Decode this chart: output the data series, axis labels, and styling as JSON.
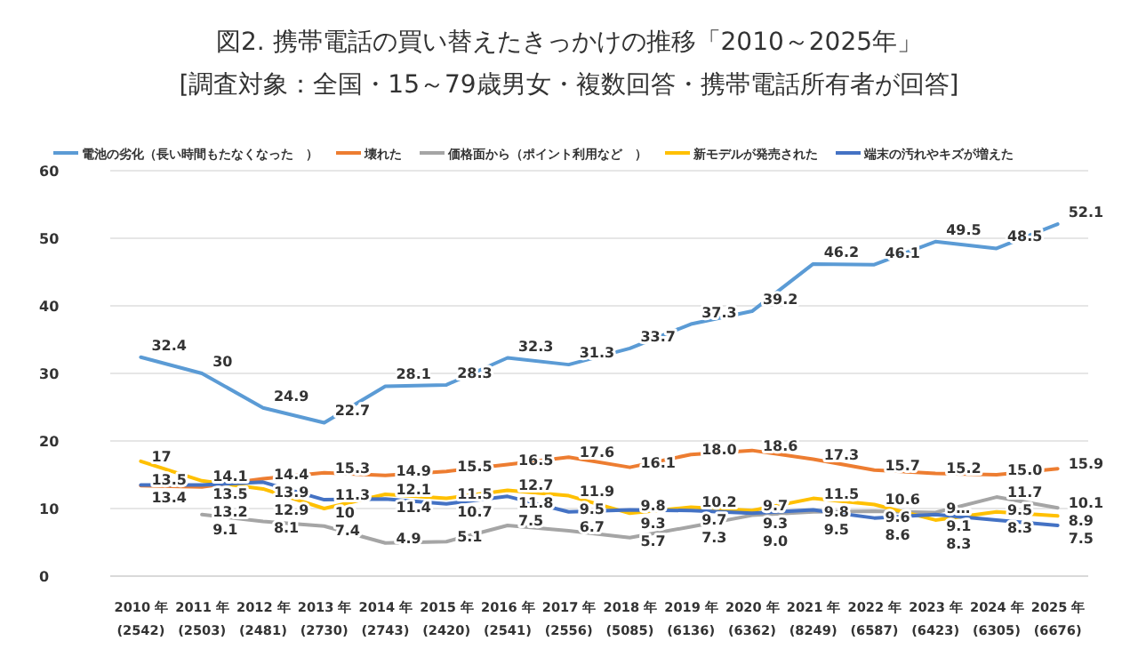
{
  "chart_data": {
    "type": "line",
    "title": "図2. 携帯電話の買い替えたきっかけの推移「2010～2025年」",
    "subtitle": "[調査対象：全国・15～79歳男女・複数回答・携帯電話所有者が回答]",
    "categories": [
      "2010 年\n(2542)",
      "2011 年\n(2503)",
      "2012 年\n(2481)",
      "2013 年\n(2730)",
      "2014 年\n(2743)",
      "2015 年\n(2420)",
      "2016 年\n(2541)",
      "2017 年\n(2556)",
      "2018 年\n(5085)",
      "2019 年\n(6136)",
      "2020 年\n(6362)",
      "2021 年\n(8249)",
      "2022 年\n(6587)",
      "2023 年\n(6423)",
      "2024 年\n(6305)",
      "2025 年\n(6676)"
    ],
    "series": [
      {
        "name": "電池の劣化（長い時間もたなくなった　）",
        "color": "#5b9bd5",
        "values": [
          32.4,
          30,
          24.9,
          22.7,
          28.1,
          28.3,
          32.3,
          31.3,
          33.7,
          37.3,
          39.2,
          46.2,
          46.1,
          49.5,
          48.5,
          52.1
        ],
        "value_labels": [
          "32.4",
          "30",
          "24.9",
          "22.7",
          "28.1",
          "28.3",
          "32.3",
          "31.3",
          "33.7",
          "37.3",
          "39.2",
          "46.2",
          "46.1",
          "49.5",
          "48.5",
          "52.1"
        ]
      },
      {
        "name": "壊れた",
        "color": "#ed7d31",
        "values": [
          13.4,
          13.2,
          14.4,
          15.3,
          14.9,
          15.5,
          16.5,
          17.6,
          16.1,
          18.0,
          18.6,
          17.3,
          15.7,
          15.2,
          15.0,
          15.9
        ],
        "value_labels": [
          "13.4",
          "13.2",
          "14.4",
          "15.3",
          "14.9",
          "15.5",
          "16.5",
          "17.6",
          "16.1",
          "18.0",
          "18.6",
          "17.3",
          "15.7",
          "15.2",
          "15.0",
          "15.9"
        ]
      },
      {
        "name": "価格面から（ポイント利用など　）",
        "color": "#a5a5a5",
        "values": [
          null,
          9.1,
          8.1,
          7.4,
          4.9,
          5.1,
          7.5,
          6.7,
          5.7,
          7.3,
          9.0,
          9.5,
          9.6,
          9.4,
          11.7,
          10.1
        ],
        "value_labels": [
          null,
          "9.1",
          "8.1",
          "7.4",
          "4.9",
          "5.1",
          "7.5",
          "6.7",
          "5.7",
          "7.3",
          "9.0",
          "9.5",
          "9.6",
          "9…",
          "11.7",
          "10.1"
        ]
      },
      {
        "name": "新モデルが発売された",
        "color": "#ffc000",
        "values": [
          17,
          14.1,
          12.9,
          10,
          12.1,
          11.5,
          12.7,
          11.9,
          9.3,
          10.2,
          9.7,
          11.5,
          10.6,
          8.3,
          9.5,
          8.9
        ],
        "value_labels": [
          "17",
          "14.1",
          "12.9",
          "10",
          "12.1",
          "11.5",
          "12.7",
          "11.9",
          "9.3",
          "10.2",
          "9.7",
          "11.5",
          "10.6",
          "8.3",
          "9.5",
          "8.9"
        ]
      },
      {
        "name": "端末の汚れやキズが増えた",
        "color": "#4472c4",
        "values": [
          13.5,
          13.5,
          13.9,
          11.3,
          11.4,
          10.7,
          11.8,
          9.5,
          9.8,
          9.7,
          9.3,
          9.8,
          8.6,
          9.1,
          8.3,
          7.5
        ],
        "value_labels": [
          "13.5",
          "13.5",
          "13.9",
          "11.3",
          "11.4",
          "10.7",
          "11.8",
          "9.5",
          "9.8",
          "9.7",
          "9.3",
          "9.8",
          "8.6",
          "9.1",
          "8.3",
          "7.5"
        ]
      }
    ],
    "ylim": [
      0,
      60
    ],
    "yticks": [
      0,
      10,
      20,
      30,
      40,
      50,
      60
    ],
    "grid": "y",
    "legend": "top",
    "marker": "none",
    "line_style": "solid"
  }
}
